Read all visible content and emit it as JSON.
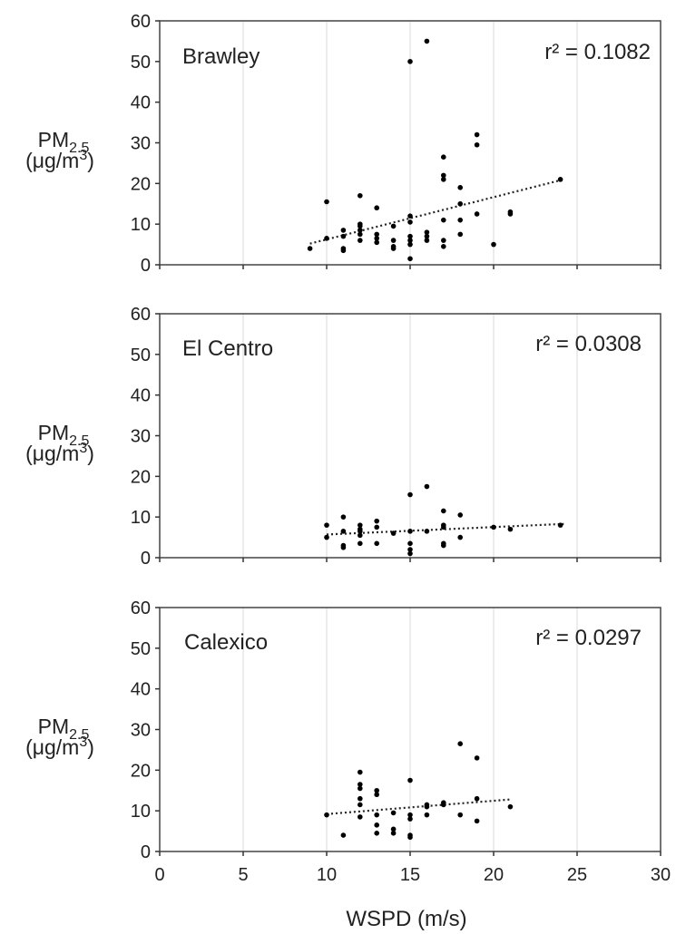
{
  "chart_data": [
    {
      "type": "scatter",
      "site": "Brawley",
      "r2_label": "r² = 0.1082",
      "ylabel_main": "PM",
      "ylabel_sub": "2.5",
      "ylabel_unit_base": "(μg/m",
      "ylabel_unit_sup": "3",
      "ylabel_unit_close": ")",
      "xlim": [
        0,
        30
      ],
      "ylim": [
        0,
        60
      ],
      "xticks": [
        "0",
        "5",
        "10",
        "15",
        "20",
        "25",
        "30"
      ],
      "yticks": [
        "0",
        "10",
        "20",
        "30",
        "40",
        "50",
        "60"
      ],
      "grid": "vertical",
      "trendline": {
        "x": [
          9,
          24.2
        ],
        "y": [
          5.2,
          21
        ]
      },
      "points": [
        {
          "x": 9,
          "y": 4
        },
        {
          "x": 10,
          "y": 6.5
        },
        {
          "x": 10,
          "y": 15.5
        },
        {
          "x": 11,
          "y": 3.5
        },
        {
          "x": 11,
          "y": 4
        },
        {
          "x": 11,
          "y": 7
        },
        {
          "x": 11,
          "y": 8.5
        },
        {
          "x": 12,
          "y": 6
        },
        {
          "x": 12,
          "y": 7.5
        },
        {
          "x": 12,
          "y": 8.5
        },
        {
          "x": 12,
          "y": 9.5
        },
        {
          "x": 12,
          "y": 10
        },
        {
          "x": 12,
          "y": 17
        },
        {
          "x": 13,
          "y": 5.5
        },
        {
          "x": 13,
          "y": 6.5
        },
        {
          "x": 13,
          "y": 7.5
        },
        {
          "x": 13,
          "y": 14
        },
        {
          "x": 14,
          "y": 4
        },
        {
          "x": 14,
          "y": 4.5
        },
        {
          "x": 14,
          "y": 6
        },
        {
          "x": 14,
          "y": 9.5
        },
        {
          "x": 15,
          "y": 1.5
        },
        {
          "x": 15,
          "y": 5
        },
        {
          "x": 15,
          "y": 6
        },
        {
          "x": 15,
          "y": 7
        },
        {
          "x": 15,
          "y": 10.5
        },
        {
          "x": 15,
          "y": 12
        },
        {
          "x": 15,
          "y": 50
        },
        {
          "x": 16,
          "y": 6
        },
        {
          "x": 16,
          "y": 7
        },
        {
          "x": 16,
          "y": 8
        },
        {
          "x": 16,
          "y": 55
        },
        {
          "x": 17,
          "y": 4.5
        },
        {
          "x": 17,
          "y": 6
        },
        {
          "x": 17,
          "y": 11
        },
        {
          "x": 17,
          "y": 21
        },
        {
          "x": 17,
          "y": 22
        },
        {
          "x": 17,
          "y": 26.5
        },
        {
          "x": 18,
          "y": 7.5
        },
        {
          "x": 18,
          "y": 11
        },
        {
          "x": 18,
          "y": 15
        },
        {
          "x": 18,
          "y": 19
        },
        {
          "x": 19,
          "y": 12.5
        },
        {
          "x": 19,
          "y": 29.5
        },
        {
          "x": 19,
          "y": 32
        },
        {
          "x": 20,
          "y": 5
        },
        {
          "x": 21,
          "y": 12.5
        },
        {
          "x": 21,
          "y": 13
        },
        {
          "x": 24,
          "y": 21
        }
      ]
    },
    {
      "type": "scatter",
      "site": "El Centro",
      "r2_label": "r² = 0.0308",
      "ylabel_main": "PM",
      "ylabel_sub": "2.5",
      "ylabel_unit_base": "(μg/m",
      "ylabel_unit_sup": "3",
      "ylabel_unit_close": ")",
      "xlim": [
        0,
        30
      ],
      "ylim": [
        0,
        60
      ],
      "xticks": [
        "0",
        "5",
        "10",
        "15",
        "20",
        "25",
        "30"
      ],
      "yticks": [
        "0",
        "10",
        "20",
        "30",
        "40",
        "50",
        "60"
      ],
      "grid": "vertical",
      "trendline": {
        "x": [
          10,
          24.2
        ],
        "y": [
          5.7,
          8.3
        ]
      },
      "points": [
        {
          "x": 10,
          "y": 5
        },
        {
          "x": 10,
          "y": 8
        },
        {
          "x": 11,
          "y": 2.5
        },
        {
          "x": 11,
          "y": 3
        },
        {
          "x": 11,
          "y": 6.5
        },
        {
          "x": 11,
          "y": 10
        },
        {
          "x": 12,
          "y": 3.5
        },
        {
          "x": 12,
          "y": 5.5
        },
        {
          "x": 12,
          "y": 6.5
        },
        {
          "x": 12,
          "y": 7
        },
        {
          "x": 12,
          "y": 8
        },
        {
          "x": 13,
          "y": 3.5
        },
        {
          "x": 13,
          "y": 7.5
        },
        {
          "x": 13,
          "y": 9
        },
        {
          "x": 14,
          "y": 6
        },
        {
          "x": 15,
          "y": 1
        },
        {
          "x": 15,
          "y": 2
        },
        {
          "x": 15,
          "y": 3.5
        },
        {
          "x": 15,
          "y": 6.5
        },
        {
          "x": 15,
          "y": 15.5
        },
        {
          "x": 16,
          "y": 6.5
        },
        {
          "x": 16,
          "y": 17.5
        },
        {
          "x": 17,
          "y": 3
        },
        {
          "x": 17,
          "y": 3.5
        },
        {
          "x": 17,
          "y": 7.5
        },
        {
          "x": 17,
          "y": 8
        },
        {
          "x": 17,
          "y": 11.5
        },
        {
          "x": 18,
          "y": 5
        },
        {
          "x": 18,
          "y": 10.5
        },
        {
          "x": 20,
          "y": 7.5
        },
        {
          "x": 21,
          "y": 7
        },
        {
          "x": 24,
          "y": 8
        }
      ]
    },
    {
      "type": "scatter",
      "site": "Calexico",
      "r2_label": "r² = 0.0297",
      "ylabel_main": "PM",
      "ylabel_sub": "2.5",
      "ylabel_unit_base": "(μg/m",
      "ylabel_unit_sup": "3",
      "ylabel_unit_close": ")",
      "xlabel": "WSPD (m/s)",
      "xlim": [
        0,
        30
      ],
      "ylim": [
        0,
        60
      ],
      "xticks": [
        "0",
        "5",
        "10",
        "15",
        "20",
        "25",
        "30"
      ],
      "yticks": [
        "0",
        "10",
        "20",
        "30",
        "40",
        "50",
        "60"
      ],
      "grid": "vertical",
      "trendline": {
        "x": [
          10,
          21
        ],
        "y": [
          9.2,
          12.8
        ]
      },
      "points": [
        {
          "x": 10,
          "y": 9
        },
        {
          "x": 11,
          "y": 4
        },
        {
          "x": 12,
          "y": 8.5
        },
        {
          "x": 12,
          "y": 11.5
        },
        {
          "x": 12,
          "y": 13
        },
        {
          "x": 12,
          "y": 15.5
        },
        {
          "x": 12,
          "y": 16.5
        },
        {
          "x": 12,
          "y": 19.5
        },
        {
          "x": 13,
          "y": 4.5
        },
        {
          "x": 13,
          "y": 6.5
        },
        {
          "x": 13,
          "y": 9
        },
        {
          "x": 13,
          "y": 14
        },
        {
          "x": 13,
          "y": 15
        },
        {
          "x": 14,
          "y": 4.5
        },
        {
          "x": 14,
          "y": 5.5
        },
        {
          "x": 14,
          "y": 9.5
        },
        {
          "x": 15,
          "y": 3.5
        },
        {
          "x": 15,
          "y": 4
        },
        {
          "x": 15,
          "y": 8
        },
        {
          "x": 15,
          "y": 9
        },
        {
          "x": 15,
          "y": 17.5
        },
        {
          "x": 16,
          "y": 9
        },
        {
          "x": 16,
          "y": 11
        },
        {
          "x": 16,
          "y": 11.5
        },
        {
          "x": 17,
          "y": 11.5
        },
        {
          "x": 17,
          "y": 12
        },
        {
          "x": 18,
          "y": 9
        },
        {
          "x": 18,
          "y": 26.5
        },
        {
          "x": 19,
          "y": 7.5
        },
        {
          "x": 19,
          "y": 13
        },
        {
          "x": 19,
          "y": 23
        },
        {
          "x": 21,
          "y": 11
        }
      ]
    }
  ]
}
